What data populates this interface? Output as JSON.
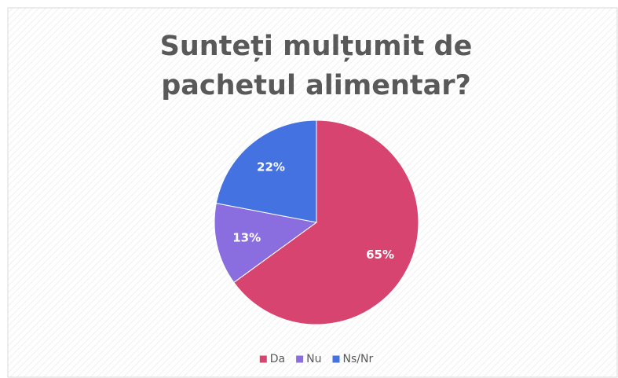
{
  "chart_data": {
    "type": "pie",
    "title": "Sunteți mulțumit de pachetul alimentar?",
    "categories": [
      "Da",
      "Nu",
      "Ns/Nr"
    ],
    "values": [
      65,
      13,
      22
    ],
    "value_labels": [
      "65%",
      "13%",
      "22%"
    ],
    "colors": [
      "#d6446f",
      "#8a6ee0",
      "#4472e0"
    ],
    "legend": "bottom"
  }
}
